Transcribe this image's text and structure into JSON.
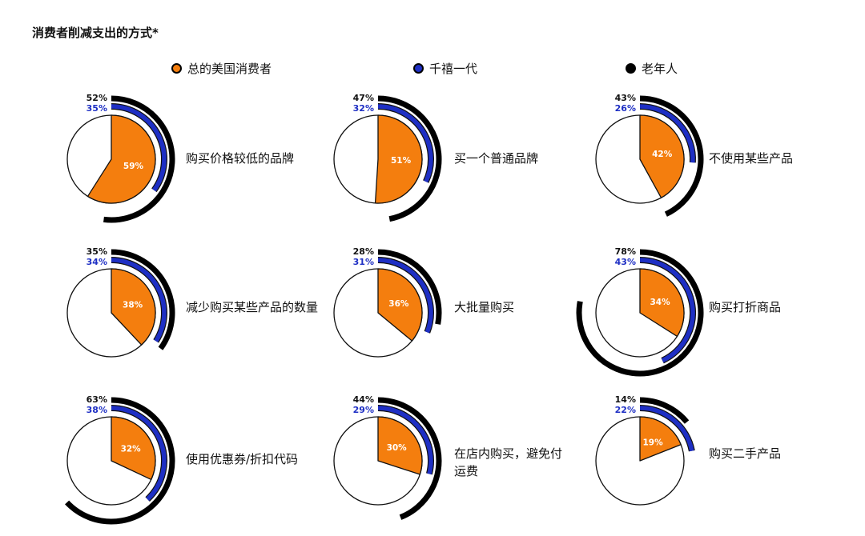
{
  "chart_data": {
    "type": "pie",
    "title": "消费者削减支出的方式*",
    "legend_position": "top",
    "series": [
      {
        "name": "总的美国消费者",
        "color": "#F47E0E"
      },
      {
        "name": "千禧一代",
        "color": "#1E2FC4"
      },
      {
        "name": "老年人",
        "color": "#000000"
      }
    ],
    "items": [
      {
        "category": "购买价格较低的品牌",
        "total": 59,
        "millennials": 35,
        "seniors": 52
      },
      {
        "category": "买一个普通品牌",
        "total": 51,
        "millennials": 32,
        "seniors": 47
      },
      {
        "category": "不使用某些产品",
        "total": 42,
        "millennials": 26,
        "seniors": 43
      },
      {
        "category": "减少购买某些产品的数量",
        "total": 38,
        "millennials": 34,
        "seniors": 35
      },
      {
        "category": "大批量购买",
        "total": 36,
        "millennials": 31,
        "seniors": 28
      },
      {
        "category": "购买打折商品",
        "total": 34,
        "millennials": 43,
        "seniors": 78
      },
      {
        "category": "使用优惠券/折扣代码",
        "total": 32,
        "millennials": 38,
        "seniors": 63
      },
      {
        "category": "在店内购买，避免付运费",
        "total": 30,
        "millennials": 29,
        "seniors": 44
      },
      {
        "category": "购买二手产品",
        "total": 19,
        "millennials": 22,
        "seniors": 14
      }
    ]
  }
}
